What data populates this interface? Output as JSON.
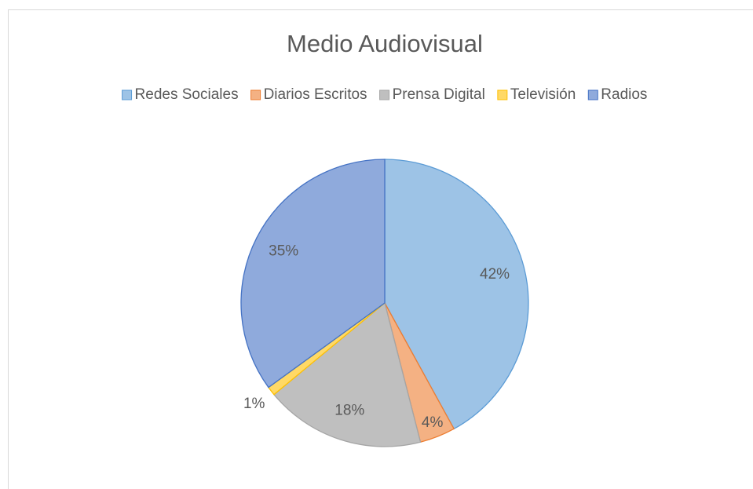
{
  "chart_data": {
    "type": "pie",
    "title": "Medio Audiovisual",
    "categories": [
      "Redes Sociales",
      "Diarios Escritos",
      "Prensa Digital",
      "Televisión",
      "Radios"
    ],
    "values": [
      42,
      4,
      18,
      1,
      35
    ],
    "value_labels": [
      "42%",
      "4%",
      "18%",
      "1%",
      "35%"
    ],
    "colors": [
      "#9dc3e6",
      "#f4b183",
      "#bfbfbf",
      "#ffd966",
      "#8faadc"
    ],
    "edge_colors": [
      "#5b9bd5",
      "#ed7d31",
      "#a5a5a5",
      "#ffc000",
      "#4472c4"
    ],
    "legend": "top"
  }
}
